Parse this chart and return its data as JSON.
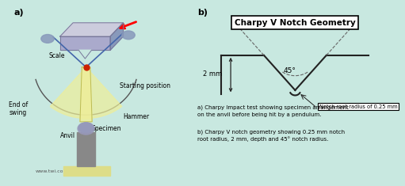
{
  "bg_color": "#c8e8e0",
  "panel_left_bg": "#c8e8e0",
  "panel_right_bg": "#c8e8e0",
  "inner_diagram_bg": "#ffffff",
  "title_box": "Charpy V Notch Geometry",
  "label_b": "b)",
  "label_a": "a)",
  "notch_angle_label": "45°",
  "depth_label": "2 mm",
  "radius_label": "Notch root radius of 0.25 mm",
  "caption_a": "a) Charpy Impact test showing specimen arrangement\non the anvil before being hit by a pendulum.",
  "caption_b": "b) Charpy V notch geometry showing 0.25 mm notch\nroot radius, 2 mm, depth and 45° notch radius.",
  "line_color": "#222222",
  "dashed_color": "#666666",
  "scale_arc_color": "#555555",
  "pivot_color": "#cc2200",
  "arm_color": "#4466aa",
  "pendulum_fill": "#eeee99",
  "hammer_color": "#8899bb",
  "anvil_base_color": "#dddd88",
  "anvil_stand_color": "#888888",
  "specimen_color": "#9999bb",
  "text_color": "#111111",
  "url_color": "#555555"
}
